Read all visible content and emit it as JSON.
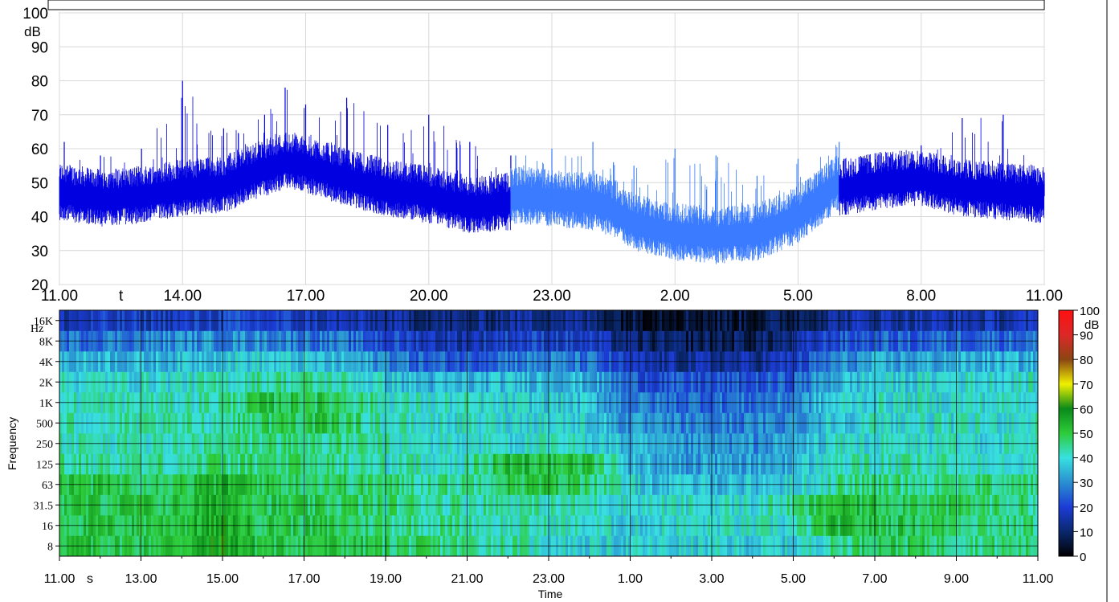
{
  "colors": {
    "level_day": "#0000e0",
    "level_night": "#3a7bff",
    "colorbar": [
      "#000000",
      "#0a2a6e",
      "#1c3cd6",
      "#2a8fd0",
      "#38e0e0",
      "#2ecc3a",
      "#0a8a1a",
      "#f0f000",
      "#8b4513",
      "#ff1010"
    ]
  },
  "chart_data": [
    {
      "type": "line",
      "ylabel_unit": "dB",
      "ylim": [
        20,
        100
      ],
      "y_ticks": [
        "20",
        "30",
        "40",
        "50",
        "60",
        "70",
        "80",
        "90",
        "100"
      ],
      "x_ticks": [
        "11.00",
        "14.00",
        "17.00",
        "20.00",
        "23.00",
        "2.00",
        "5.00",
        "8.00",
        "11.00"
      ],
      "x_axis_marker": "t",
      "x_range_hours": [
        11,
        35
      ],
      "grid": true,
      "series": [
        {
          "segment": "day",
          "x": [
            "11.00",
            "12.00",
            "13.00",
            "14.00",
            "15.00",
            "16.00",
            "16.30",
            "17.00",
            "18.00",
            "19.00",
            "20.00",
            "21.00",
            "22.00"
          ],
          "base": [
            47,
            45,
            46,
            48,
            49,
            54,
            56,
            55,
            51,
            48,
            46,
            43,
            44
          ],
          "peak": [
            62,
            58,
            60,
            80,
            66,
            70,
            78,
            73,
            75,
            67,
            70,
            62,
            58
          ]
        },
        {
          "segment": "night",
          "x": [
            "22.00",
            "23.00",
            "24.00",
            "0.30",
            "1.00",
            "2.00",
            "3.00",
            "4.00",
            "5.00",
            "6.00"
          ],
          "base": [
            46,
            45,
            44,
            42,
            38,
            35,
            34,
            35,
            40,
            50
          ],
          "peak": [
            58,
            60,
            62,
            56,
            55,
            60,
            58,
            52,
            57,
            62
          ]
        },
        {
          "segment": "day",
          "x": [
            "6.00",
            "7.00",
            "8.00",
            "9.00",
            "10.00",
            "11.00"
          ],
          "base": [
            48,
            50,
            51,
            48,
            47,
            46
          ],
          "peak": [
            57,
            59,
            61,
            69,
            70,
            53
          ]
        }
      ]
    },
    {
      "type": "heatmap",
      "ylabel": "Frequency",
      "xlabel": "Time",
      "x_ticks": [
        "11.00",
        "13.00",
        "15.00",
        "17.00",
        "19.00",
        "21.00",
        "23.00",
        "1.00",
        "3.00",
        "5.00",
        "7.00",
        "9.00",
        "11.00"
      ],
      "x_axis_marker": "s",
      "y_ticks": [
        "8",
        "16",
        "31.5",
        "63",
        "125",
        "250",
        "500",
        "1K",
        "2K",
        "4K",
        "8K",
        "16K"
      ],
      "y_unit": "Hz",
      "colorbar_ticks": [
        "0",
        "10",
        "20",
        "30",
        "40",
        "50",
        "60",
        "70",
        "80",
        "90",
        "100"
      ],
      "colorbar_unit": "dB",
      "zlim": [
        0,
        100
      ],
      "bands_hz": [
        "8",
        "16",
        "31.5",
        "63",
        "125",
        "250",
        "500",
        "1K",
        "2K",
        "4K",
        "8K",
        "16K"
      ],
      "time_hours": [
        "11",
        "12",
        "13",
        "14",
        "15",
        "16",
        "17",
        "18",
        "19",
        "20",
        "21",
        "22",
        "23",
        "24",
        "1",
        "2",
        "3",
        "4",
        "5",
        "6",
        "7",
        "8",
        "9",
        "10",
        "11"
      ],
      "levels_db": [
        [
          52,
          50,
          50,
          52,
          58,
          50,
          50,
          50,
          48,
          46,
          45,
          44,
          40,
          38,
          38,
          38,
          38,
          38,
          38,
          44,
          50,
          48,
          47,
          46,
          46
        ],
        [
          50,
          50,
          50,
          52,
          56,
          50,
          50,
          48,
          46,
          45,
          44,
          42,
          42,
          40,
          38,
          40,
          40,
          40,
          40,
          52,
          50,
          50,
          48,
          46,
          46
        ],
        [
          50,
          50,
          50,
          50,
          55,
          50,
          48,
          48,
          46,
          45,
          44,
          44,
          42,
          42,
          40,
          40,
          40,
          40,
          44,
          52,
          50,
          50,
          48,
          46,
          46
        ],
        [
          50,
          50,
          50,
          50,
          54,
          50,
          48,
          48,
          46,
          45,
          45,
          50,
          50,
          48,
          38,
          36,
          36,
          36,
          38,
          44,
          46,
          46,
          46,
          46,
          46
        ],
        [
          44,
          44,
          44,
          44,
          46,
          46,
          46,
          44,
          42,
          42,
          42,
          52,
          52,
          50,
          36,
          32,
          32,
          32,
          34,
          42,
          42,
          42,
          42,
          42,
          42
        ],
        [
          42,
          42,
          42,
          42,
          44,
          46,
          46,
          44,
          42,
          40,
          40,
          40,
          40,
          40,
          34,
          30,
          30,
          30,
          32,
          40,
          40,
          40,
          40,
          40,
          42
        ],
        [
          42,
          42,
          42,
          42,
          44,
          48,
          50,
          48,
          42,
          40,
          40,
          40,
          40,
          38,
          30,
          28,
          28,
          28,
          30,
          38,
          40,
          40,
          40,
          40,
          42
        ],
        [
          42,
          42,
          42,
          42,
          44,
          50,
          50,
          48,
          42,
          40,
          40,
          38,
          38,
          36,
          28,
          26,
          26,
          26,
          28,
          38,
          40,
          40,
          40,
          40,
          42
        ],
        [
          40,
          40,
          40,
          40,
          42,
          44,
          44,
          42,
          38,
          34,
          34,
          36,
          36,
          34,
          24,
          22,
          22,
          22,
          24,
          34,
          38,
          38,
          40,
          40,
          40
        ],
        [
          34,
          36,
          34,
          36,
          38,
          38,
          36,
          34,
          30,
          24,
          24,
          28,
          28,
          26,
          16,
          14,
          14,
          14,
          18,
          28,
          32,
          32,
          34,
          34,
          34
        ],
        [
          26,
          28,
          28,
          30,
          30,
          30,
          28,
          26,
          22,
          18,
          16,
          20,
          20,
          18,
          10,
          8,
          8,
          8,
          12,
          22,
          24,
          24,
          26,
          26,
          26
        ],
        [
          16,
          18,
          18,
          18,
          20,
          20,
          18,
          16,
          14,
          12,
          10,
          14,
          14,
          12,
          6,
          6,
          6,
          6,
          8,
          14,
          16,
          16,
          16,
          16,
          16
        ]
      ]
    }
  ]
}
